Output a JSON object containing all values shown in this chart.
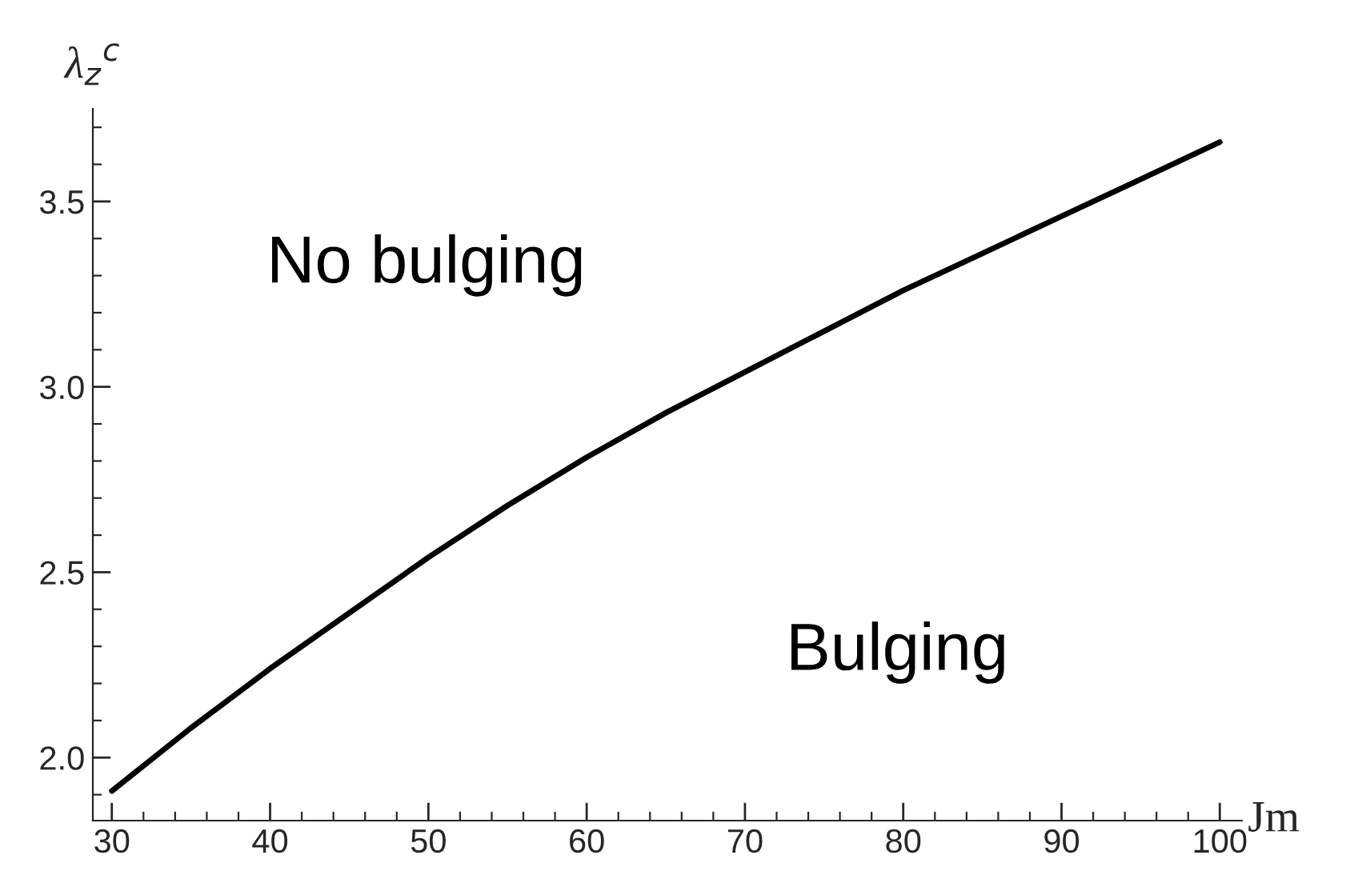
{
  "chart_data": {
    "type": "line",
    "xlabel": "Jm",
    "ylabel": "λ$_{z}$$^{c}$",
    "x": [
      30,
      35,
      40,
      45,
      50,
      55,
      60,
      65,
      70,
      75,
      80,
      85,
      90,
      95,
      100
    ],
    "series": [
      {
        "color": "#000000",
        "values": [
          1.91,
          2.08,
          2.24,
          2.39,
          2.54,
          2.68,
          2.81,
          2.93,
          3.04,
          3.15,
          3.26,
          3.36,
          3.46,
          3.56,
          3.66
        ]
      }
    ],
    "xlim": [
      28.8,
      101.4
    ],
    "xticks": [
      30,
      40,
      50,
      60,
      70,
      80,
      90,
      100
    ],
    "ylim": [
      1.83,
      3.75
    ],
    "yticks": [
      {
        "value": 2.0,
        "label": "2.0"
      },
      2.5,
      {
        "value": 3.0,
        "label": "3.0"
      },
      3.5
    ],
    "grid": false,
    "legend": false,
    "marker": "none",
    "line_style": "solid",
    "annotations": [
      "No bulging",
      "Bulging"
    ]
  }
}
